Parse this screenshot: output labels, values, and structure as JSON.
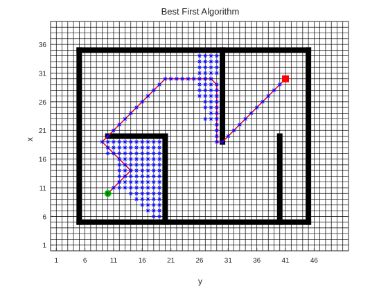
{
  "chart_data": {
    "type": "scatter",
    "title": "Best First Algorithm",
    "xlabel": "y",
    "ylabel": "x",
    "xlim": [
      0,
      52
    ],
    "ylim": [
      0,
      40
    ],
    "xticks": [
      1,
      6,
      11,
      16,
      21,
      26,
      31,
      36,
      41,
      46
    ],
    "yticks": [
      1,
      6,
      11,
      16,
      21,
      26,
      31,
      36
    ],
    "grid": "on",
    "grid_color": "#000000",
    "wall_color": "#000000",
    "explored_color": "#0000ff",
    "path_color": "#ff0000",
    "start_color": "#00cc00",
    "goal_color": "#ff0000",
    "walls": [
      {
        "y": [
          5,
          45
        ],
        "x": [
          5,
          5
        ]
      },
      {
        "y": [
          5,
          45
        ],
        "x": [
          35,
          35
        ]
      },
      {
        "y": [
          5,
          5
        ],
        "x": [
          5,
          35
        ]
      },
      {
        "y": [
          45,
          45
        ],
        "x": [
          5,
          35
        ]
      },
      {
        "y": [
          20,
          20
        ],
        "x": [
          5,
          20
        ]
      },
      {
        "y": [
          10,
          20
        ],
        "x": [
          20,
          20
        ]
      },
      {
        "y": [
          30,
          30
        ],
        "x": [
          19,
          35
        ]
      },
      {
        "y": [
          40,
          40
        ],
        "x": [
          5,
          20
        ]
      }
    ],
    "start": {
      "y": 10,
      "x": 10
    },
    "goal": {
      "y": 41,
      "x": 30
    },
    "path": {
      "y": [
        10,
        11,
        12,
        13,
        14,
        13,
        12,
        11,
        10,
        9,
        10,
        11,
        12,
        13,
        14,
        15,
        16,
        17,
        18,
        19,
        20,
        21,
        22,
        23,
        24,
        25,
        26,
        27,
        28,
        29,
        29,
        29,
        29,
        29,
        29,
        29,
        29,
        29,
        29,
        29,
        30,
        31,
        32,
        33,
        34,
        35,
        36,
        37,
        38,
        39,
        40,
        41
      ],
      "x": [
        10,
        11,
        12,
        13,
        14,
        15,
        16,
        17,
        18,
        19,
        20,
        21,
        22,
        23,
        24,
        25,
        26,
        27,
        28,
        29,
        30,
        30,
        30,
        30,
        30,
        30,
        30,
        30,
        30,
        29,
        28,
        27,
        26,
        25,
        24,
        23,
        22,
        21,
        20,
        19,
        19,
        20,
        21,
        22,
        23,
        24,
        25,
        26,
        27,
        28,
        29,
        30
      ]
    },
    "explored_regions": [
      {
        "y0": 10,
        "y1": 11,
        "x0": 17,
        "x1": 19
      },
      {
        "y0": 12,
        "y1": 19,
        "x0": 16,
        "x1": 19
      },
      {
        "y0": 12,
        "y1": 19,
        "x0": 11,
        "x1": 15
      },
      {
        "y0": 14,
        "y1": 19,
        "x0": 10,
        "x1": 10
      },
      {
        "y0": 15,
        "y1": 19,
        "x0": 9,
        "x1": 9
      },
      {
        "y0": 16,
        "y1": 19,
        "x0": 8,
        "x1": 8
      },
      {
        "y0": 17,
        "y1": 19,
        "x0": 7,
        "x1": 7
      },
      {
        "y0": 18,
        "y1": 19,
        "x0": 6,
        "x1": 6
      },
      {
        "y0": 26,
        "y1": 28,
        "x0": 29,
        "x1": 34
      },
      {
        "y0": 26,
        "y1": 28,
        "x0": 27,
        "x1": 28
      },
      {
        "y0": 27,
        "y1": 28,
        "x0": 25,
        "x1": 26
      },
      {
        "y0": 28,
        "y1": 28,
        "x0": 24,
        "x1": 24
      },
      {
        "y0": 27,
        "y1": 28,
        "x0": 23,
        "x1": 23
      },
      {
        "y0": 29,
        "y1": 29,
        "x0": 31,
        "x1": 34
      }
    ]
  }
}
